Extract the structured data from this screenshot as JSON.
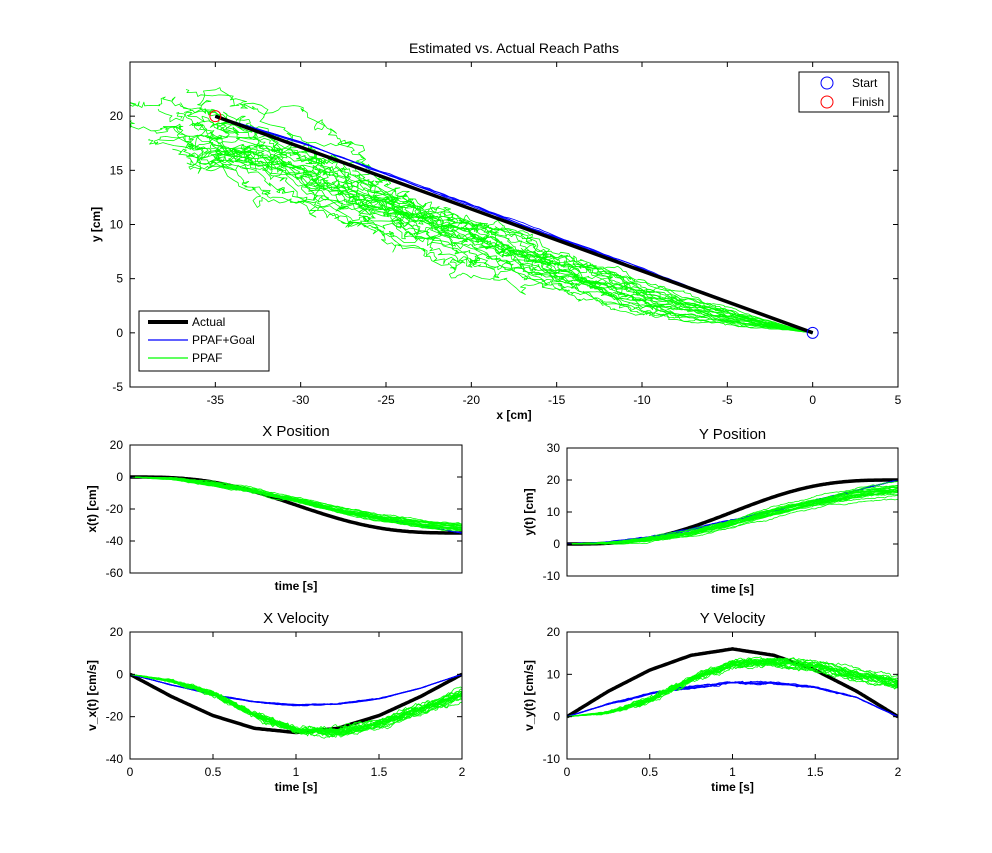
{
  "chart_data": [
    {
      "id": "reach",
      "type": "line",
      "title": "Estimated vs. Actual Reach Paths",
      "xlabel": "x [cm]",
      "ylabel": "y [cm]",
      "xlim": [
        -40,
        5
      ],
      "ylim": [
        -5,
        25
      ],
      "xticks": [
        -35,
        -30,
        -25,
        -20,
        -15,
        -10,
        -5,
        0,
        5
      ],
      "yticks": [
        -5,
        0,
        5,
        10,
        15,
        20
      ],
      "grid": false,
      "legends": [
        {
          "placement": "top-right",
          "entries": [
            {
              "label": "Start",
              "marker": "circle",
              "color": "#0000ff"
            },
            {
              "label": "Finish",
              "marker": "circle",
              "color": "#ff0000"
            }
          ]
        },
        {
          "placement": "bottom-left",
          "entries": [
            {
              "label": "Actual",
              "color": "#000000",
              "width": "thick"
            },
            {
              "label": "PPAF+Goal",
              "color": "#0000ff",
              "width": "thin"
            },
            {
              "label": "PPAF",
              "color": "#00ff00",
              "width": "thin"
            }
          ]
        }
      ],
      "markers": [
        {
          "label": "Start",
          "x": 0,
          "y": 0,
          "color": "#0000ff"
        },
        {
          "label": "Finish",
          "x": -35,
          "y": 20,
          "color": "#ff0000"
        }
      ],
      "series": [
        {
          "name": "Actual",
          "color": "#000000",
          "points": [
            [
              0,
              0
            ],
            [
              -35,
              20
            ]
          ]
        },
        {
          "name": "PPAF+Goal",
          "color": "#0000ff",
          "points": [
            [
              0,
              0
            ],
            [
              -5,
              2.9
            ],
            [
              -10,
              5.9
            ],
            [
              -15,
              8.8
            ],
            [
              -20,
              11.8
            ],
            [
              -25,
              14.7
            ],
            [
              -30,
              17.6
            ],
            [
              -35,
              20
            ]
          ]
        },
        {
          "name": "PPAF",
          "color": "#00ff00",
          "trials": 25,
          "points": [
            [
              0,
              0
            ],
            [
              -5,
              1.5
            ],
            [
              -10,
              3.5
            ],
            [
              -15,
              6
            ],
            [
              -20,
              9
            ],
            [
              -25,
              12
            ],
            [
              -30,
              15.5
            ],
            [
              -35,
              18.5
            ],
            [
              -38,
              19
            ]
          ]
        }
      ]
    },
    {
      "id": "xpos",
      "type": "line",
      "title": "X Position",
      "xlabel": "time [s]",
      "ylabel": "x(t) [cm]",
      "xlim": [
        0,
        2
      ],
      "ylim": [
        -60,
        20
      ],
      "yticks": [
        -60,
        -40,
        -20,
        0,
        20
      ],
      "series": [
        {
          "name": "Actual",
          "color": "#000000",
          "x": [
            0,
            0.25,
            0.5,
            0.75,
            1,
            1.25,
            1.5,
            1.75,
            2
          ],
          "values": [
            0,
            -1.4,
            -5.1,
            -10.5,
            -17.5,
            -24.5,
            -29.9,
            -33.6,
            -35
          ]
        },
        {
          "name": "PPAF+Goal",
          "color": "#0000ff",
          "x": [
            0,
            0.25,
            0.5,
            0.75,
            1,
            1.25,
            1.5,
            1.75,
            2
          ],
          "values": [
            0,
            -1.2,
            -4.5,
            -9.5,
            -15,
            -20.5,
            -25.5,
            -30.5,
            -35
          ]
        },
        {
          "name": "PPAF",
          "color": "#00ff00",
          "x": [
            0,
            0.25,
            0.5,
            0.75,
            1,
            1.25,
            1.5,
            1.75,
            2
          ],
          "values": [
            0,
            -1,
            -4,
            -8.5,
            -14,
            -20,
            -25,
            -28.5,
            -31
          ]
        }
      ]
    },
    {
      "id": "ypos",
      "type": "line",
      "title": "Y Position",
      "xlabel": "time [s]",
      "ylabel": "y(t) [cm]",
      "xlim": [
        0,
        2
      ],
      "ylim": [
        -10,
        30
      ],
      "yticks": [
        -10,
        0,
        10,
        20,
        30
      ],
      "series": [
        {
          "name": "Actual",
          "color": "#000000",
          "x": [
            0,
            0.25,
            0.5,
            0.75,
            1,
            1.25,
            1.5,
            1.75,
            2
          ],
          "values": [
            0,
            0.8,
            2.9,
            6,
            10,
            14,
            17.1,
            19.2,
            20
          ]
        },
        {
          "name": "PPAF+Goal",
          "color": "#0000ff",
          "x": [
            0,
            0.25,
            0.5,
            0.75,
            1,
            1.25,
            1.5,
            1.75,
            2
          ],
          "values": [
            0,
            0.6,
            2.2,
            4.7,
            7.5,
            10.5,
            13.5,
            16.8,
            20
          ]
        },
        {
          "name": "PPAF",
          "color": "#00ff00",
          "x": [
            0,
            0.25,
            0.5,
            0.75,
            1,
            1.25,
            1.5,
            1.75,
            2
          ],
          "values": [
            0,
            0.3,
            1.5,
            3.5,
            6.5,
            10,
            13,
            15.5,
            17
          ]
        }
      ]
    },
    {
      "id": "xvel",
      "type": "line",
      "title": "X Velocity",
      "xlabel": "time [s]",
      "ylabel": "v_x(t) [cm/s]",
      "xlim": [
        0,
        2
      ],
      "ylim": [
        -40,
        20
      ],
      "xticks": [
        0,
        0.5,
        1,
        1.5,
        2
      ],
      "yticks": [
        -40,
        -20,
        0,
        20
      ],
      "series": [
        {
          "name": "Actual",
          "color": "#000000",
          "x": [
            0,
            0.25,
            0.5,
            0.75,
            1,
            1.25,
            1.5,
            1.75,
            2
          ],
          "values": [
            0,
            -10.5,
            -19.5,
            -25.5,
            -27.5,
            -25.5,
            -19.5,
            -10.5,
            0
          ]
        },
        {
          "name": "PPAF+Goal",
          "color": "#0000ff",
          "x": [
            0,
            0.25,
            0.5,
            0.75,
            1,
            1.25,
            1.5,
            1.75,
            2
          ],
          "values": [
            0,
            -5,
            -9.5,
            -13,
            -14.5,
            -14,
            -11.5,
            -6.5,
            0
          ]
        },
        {
          "name": "PPAF",
          "color": "#00ff00",
          "x": [
            0,
            0.25,
            0.5,
            0.75,
            1,
            1.25,
            1.5,
            1.75,
            2
          ],
          "values": [
            0,
            -3,
            -9,
            -19,
            -26,
            -27,
            -23,
            -16,
            -9
          ]
        }
      ]
    },
    {
      "id": "yvel",
      "type": "line",
      "title": "Y Velocity",
      "xlabel": "time [s]",
      "ylabel": "v_y(t) [cm/s]",
      "xlim": [
        0,
        2
      ],
      "ylim": [
        -10,
        20
      ],
      "xticks": [
        0,
        0.5,
        1,
        1.5,
        2
      ],
      "yticks": [
        -10,
        0,
        10,
        20
      ],
      "series": [
        {
          "name": "Actual",
          "color": "#000000",
          "x": [
            0,
            0.25,
            0.5,
            0.75,
            1,
            1.25,
            1.5,
            1.75,
            2
          ],
          "values": [
            0,
            6,
            11,
            14.5,
            16,
            14.5,
            11,
            6,
            0
          ]
        },
        {
          "name": "PPAF+Goal",
          "color": "#0000ff",
          "x": [
            0,
            0.25,
            0.5,
            0.75,
            1,
            1.25,
            1.5,
            1.75,
            2
          ],
          "values": [
            0,
            3,
            5.5,
            7,
            8,
            8,
            7,
            4.5,
            0
          ]
        },
        {
          "name": "PPAF",
          "color": "#00ff00",
          "x": [
            0,
            0.25,
            0.5,
            0.75,
            1,
            1.25,
            1.5,
            1.75,
            2
          ],
          "values": [
            0,
            1,
            4,
            9,
            12.5,
            13,
            12,
            10,
            8
          ]
        }
      ]
    }
  ]
}
